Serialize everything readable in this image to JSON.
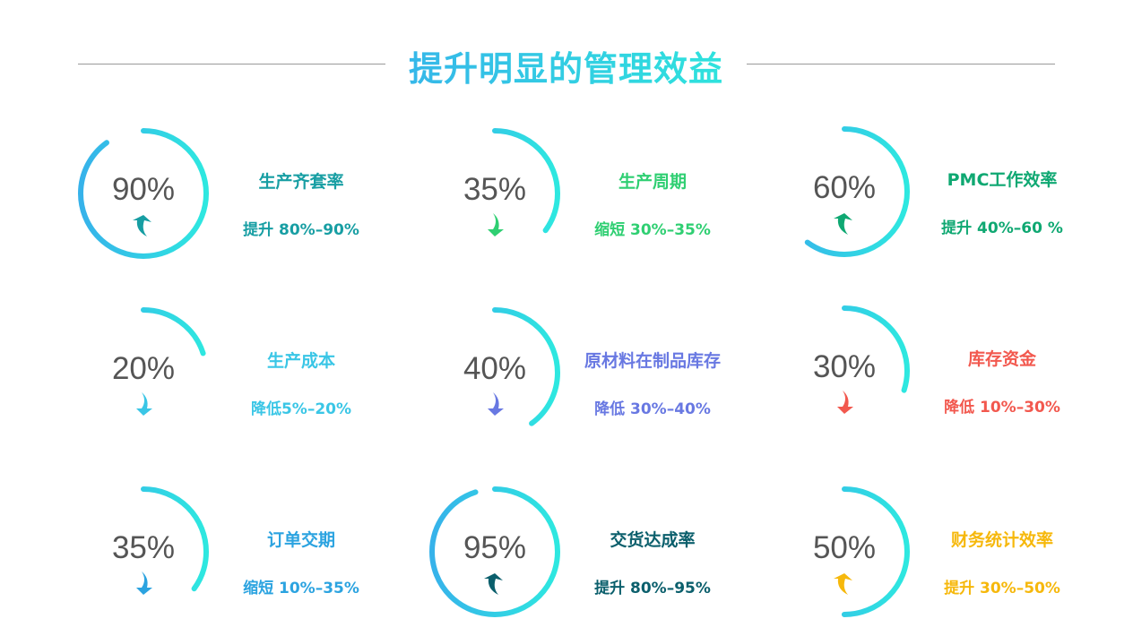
{
  "title": "提升明显的管理效益",
  "colors": {
    "arc_top": "#36b2ea",
    "arc_bottom": "#2ee8e0",
    "percent_text": "#555555"
  },
  "metrics": [
    {
      "percent": "90%",
      "value": 90,
      "direction": "up",
      "name": "生产齐套率",
      "desc": "提升 80%–90%",
      "color": "#179ea3"
    },
    {
      "percent": "35%",
      "value": 35,
      "direction": "down",
      "name": "生产周期",
      "desc": "缩短 30%–35%",
      "color": "#2fcf72"
    },
    {
      "percent": "60%",
      "value": 60,
      "direction": "up",
      "name": "PMC工作效率",
      "desc": "提升 40%–60 %",
      "color": "#0fa872"
    },
    {
      "percent": "20%",
      "value": 20,
      "direction": "down",
      "name": "生产成本",
      "desc": "降低5%–20%",
      "color": "#3ac6e6"
    },
    {
      "percent": "40%",
      "value": 40,
      "direction": "down",
      "name": "原材料在制品库存",
      "desc": "降低 30%–40%",
      "color": "#6878e2"
    },
    {
      "percent": "30%",
      "value": 30,
      "direction": "down",
      "name": "库存资金",
      "desc": "降低 10%–30%",
      "color": "#f2584e"
    },
    {
      "percent": "35%",
      "value": 35,
      "direction": "down",
      "name": "订单交期",
      "desc": "缩短 10%–35%",
      "color": "#2ba3e0"
    },
    {
      "percent": "95%",
      "value": 95,
      "direction": "up",
      "name": "交货达成率",
      "desc": "提升 80%–95%",
      "color": "#0b5f6c"
    },
    {
      "percent": "50%",
      "value": 50,
      "direction": "up",
      "name": "财务统计效率",
      "desc": "提升 30%–50%",
      "color": "#f6b80c"
    }
  ]
}
